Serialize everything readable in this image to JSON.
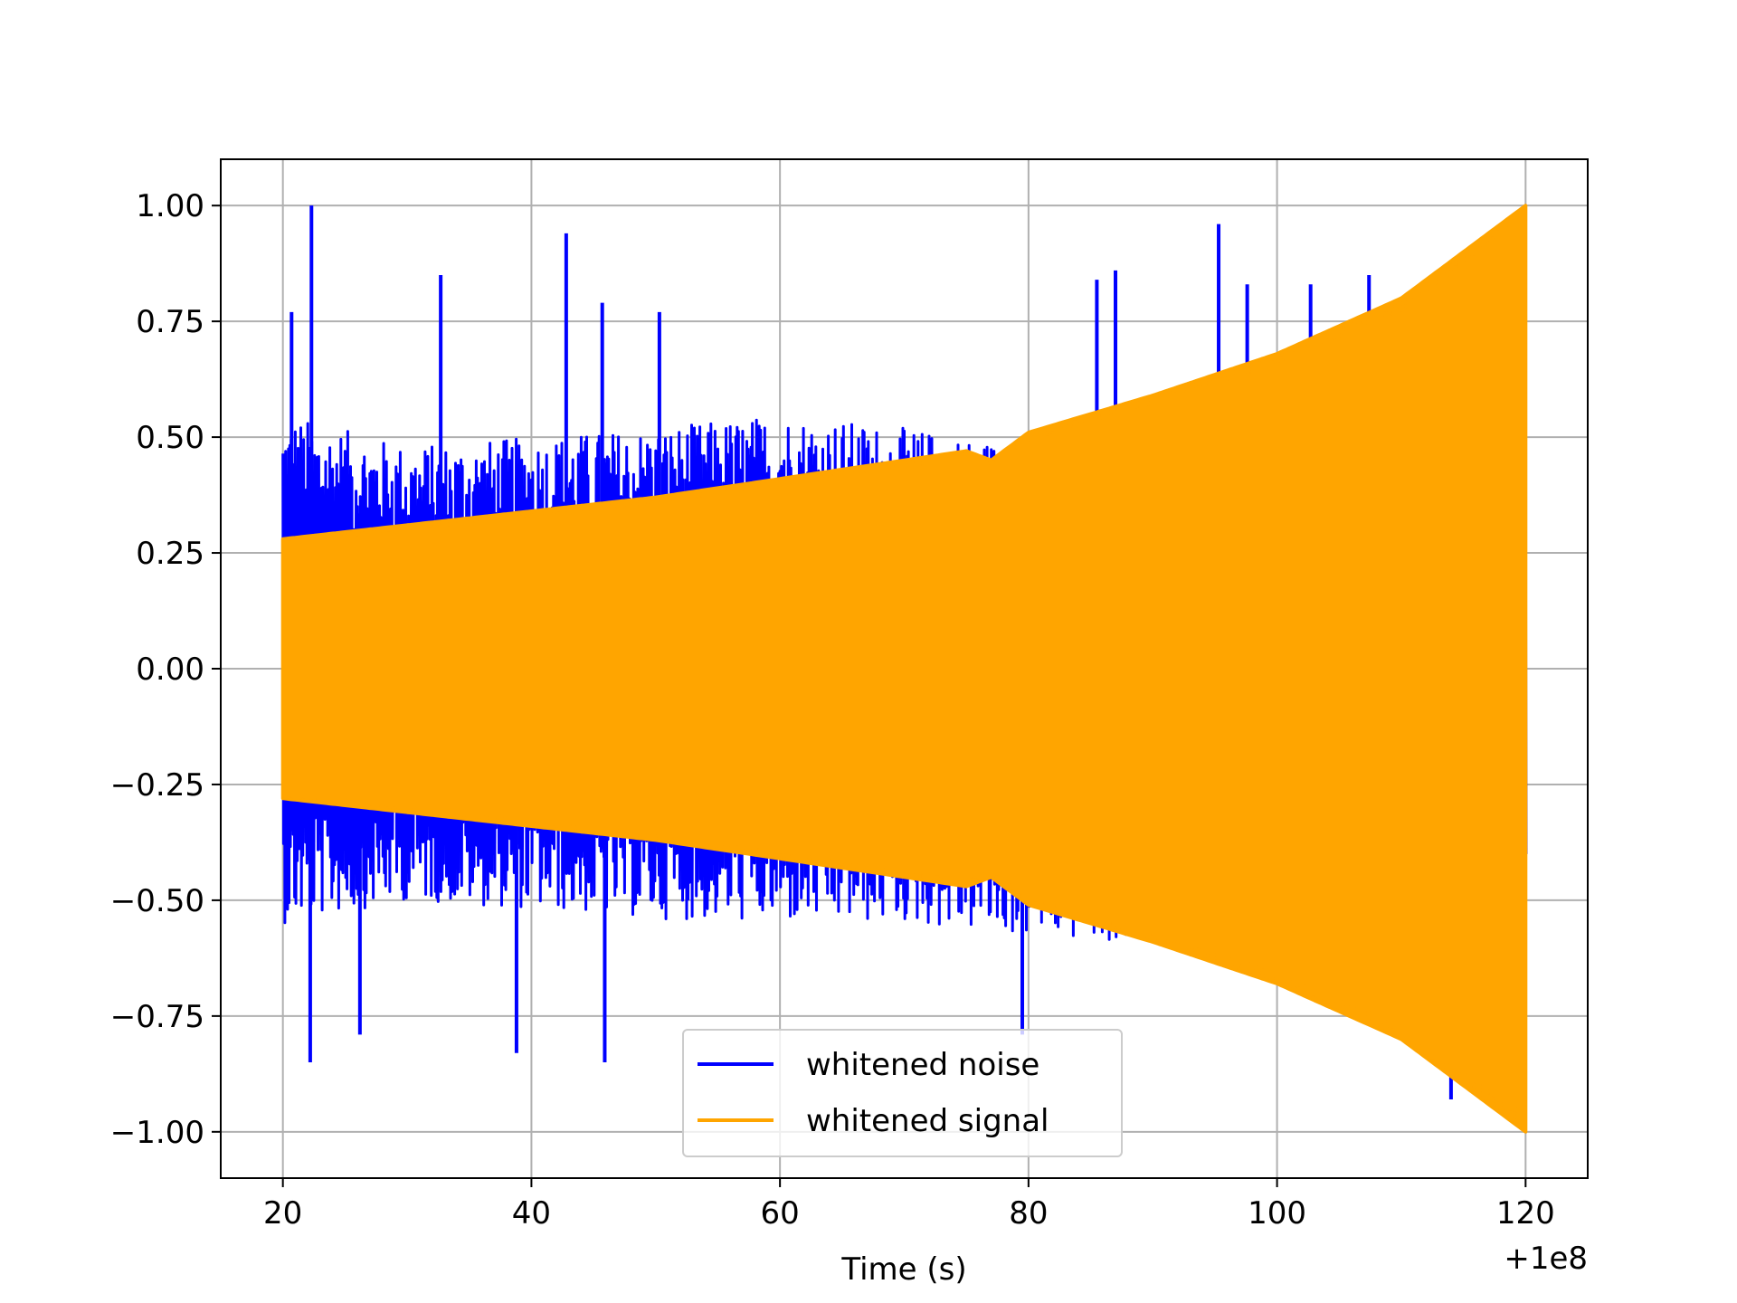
{
  "chart_data": {
    "type": "line",
    "title": "",
    "xlabel": "Time (s)",
    "ylabel": "",
    "x_offset_label": "+1e8",
    "xlim": [
      15,
      125
    ],
    "ylim": [
      -1.1,
      1.1
    ],
    "x_ticks": [
      20,
      40,
      60,
      80,
      100,
      120
    ],
    "x_tick_labels": [
      "20",
      "40",
      "60",
      "80",
      "100",
      "120"
    ],
    "y_ticks": [
      -1.0,
      -0.75,
      -0.5,
      -0.25,
      0.0,
      0.25,
      0.5,
      0.75,
      1.0
    ],
    "y_tick_labels": [
      "−1.00",
      "−0.75",
      "−0.50",
      "−0.25",
      "0.00",
      "0.25",
      "0.50",
      "0.75",
      "1.00"
    ],
    "grid": true,
    "legend_position": "bottom-center",
    "series": [
      {
        "name": "whitened noise",
        "color": "#0000ff",
        "x_range": [
          20,
          120
        ],
        "envelope_x": [
          20,
          30,
          40,
          50,
          60,
          70,
          80,
          90,
          100,
          110,
          120
        ],
        "envelope_upper": [
          0.55,
          0.48,
          0.5,
          0.52,
          0.55,
          0.52,
          0.48,
          0.5,
          0.48,
          0.5,
          0.4
        ],
        "envelope_lower": [
          -0.55,
          -0.5,
          -0.52,
          -0.54,
          -0.55,
          -0.55,
          -0.58,
          -0.6,
          -0.62,
          -0.65,
          -0.6
        ],
        "spikes": [
          {
            "x": 22.3,
            "y": 1.0
          },
          {
            "x": 42.8,
            "y": 0.94
          },
          {
            "x": 95.3,
            "y": 0.96
          },
          {
            "x": 32.7,
            "y": 0.85
          },
          {
            "x": 87.0,
            "y": 0.86
          },
          {
            "x": 107.4,
            "y": 0.85
          },
          {
            "x": 20.7,
            "y": 0.77
          },
          {
            "x": 45.7,
            "y": 0.79
          },
          {
            "x": 50.3,
            "y": 0.77
          },
          {
            "x": 85.5,
            "y": 0.84
          },
          {
            "x": 97.6,
            "y": 0.83
          },
          {
            "x": 102.7,
            "y": 0.83
          },
          {
            "x": 22.2,
            "y": -0.85
          },
          {
            "x": 38.8,
            "y": -0.83
          },
          {
            "x": 45.9,
            "y": -0.85
          },
          {
            "x": 26.2,
            "y": -0.79
          },
          {
            "x": 114.0,
            "y": -0.93
          },
          {
            "x": 79.5,
            "y": -0.79
          }
        ]
      },
      {
        "name": "whitened signal",
        "color": "#ffa500",
        "x_range": [
          20,
          120
        ],
        "envelope_x": [
          20,
          30,
          40,
          50,
          60,
          70,
          75,
          77,
          80,
          90,
          100,
          110,
          120
        ],
        "envelope_upper": [
          0.28,
          0.31,
          0.34,
          0.37,
          0.41,
          0.45,
          0.47,
          0.45,
          0.51,
          0.59,
          0.68,
          0.8,
          1.0
        ],
        "envelope_lower": [
          -0.28,
          -0.31,
          -0.34,
          -0.37,
          -0.41,
          -0.45,
          -0.47,
          -0.45,
          -0.51,
          -0.59,
          -0.68,
          -0.8,
          -1.0
        ]
      }
    ]
  }
}
